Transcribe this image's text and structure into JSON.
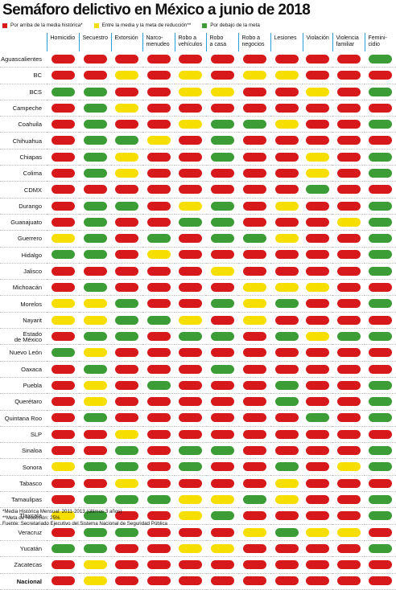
{
  "title": "Semáforo delictivo en México a junio de 2018",
  "legend": [
    {
      "label": "Por arriba de la media histórica*",
      "color": "#d7191b"
    },
    {
      "label": "Entre la media y la meta de reducción**",
      "color": "#f6df00"
    },
    {
      "label": "Por debajo de la meta",
      "color": "#3c9c35"
    }
  ],
  "colors": {
    "r": "#d7191b",
    "y": "#f6df00",
    "g": "#3c9c35"
  },
  "columns": [
    "Homicidio",
    "Secuestro",
    "Extorsión",
    "Narco-\nmenudeo",
    "Robo a\nvehículos",
    "Robo\na casa",
    "Robo a\nnegocios",
    "Lesiones",
    "Violación",
    "Violencia\nfamiliar",
    "Femini-\ncidio"
  ],
  "rows": [
    {
      "state": "Aguascalientes",
      "cells": [
        "r",
        "r",
        "r",
        "r",
        "r",
        "r",
        "r",
        "r",
        "r",
        "r",
        "g"
      ]
    },
    {
      "state": "BC",
      "cells": [
        "r",
        "r",
        "y",
        "r",
        "y",
        "r",
        "y",
        "y",
        "r",
        "r",
        "r"
      ]
    },
    {
      "state": "BCS",
      "cells": [
        "g",
        "g",
        "r",
        "r",
        "y",
        "y",
        "r",
        "r",
        "y",
        "r",
        "g"
      ]
    },
    {
      "state": "Campeche",
      "cells": [
        "r",
        "g",
        "y",
        "r",
        "r",
        "r",
        "r",
        "r",
        "r",
        "r",
        "r"
      ]
    },
    {
      "state": "Coahuila",
      "cells": [
        "r",
        "g",
        "r",
        "r",
        "y",
        "g",
        "g",
        "y",
        "r",
        "r",
        "g"
      ]
    },
    {
      "state": "Chihuahua",
      "cells": [
        "r",
        "g",
        "g",
        "y",
        "r",
        "g",
        "r",
        "r",
        "r",
        "r",
        "r"
      ]
    },
    {
      "state": "Chiapas",
      "cells": [
        "r",
        "g",
        "y",
        "r",
        "r",
        "g",
        "r",
        "r",
        "y",
        "r",
        "g"
      ]
    },
    {
      "state": "Colima",
      "cells": [
        "r",
        "g",
        "y",
        "r",
        "r",
        "r",
        "r",
        "r",
        "y",
        "r",
        "g"
      ]
    },
    {
      "state": "CDMX",
      "cells": [
        "r",
        "r",
        "r",
        "r",
        "r",
        "r",
        "r",
        "r",
        "g",
        "r",
        "r"
      ]
    },
    {
      "state": "Durango",
      "cells": [
        "r",
        "g",
        "g",
        "r",
        "y",
        "g",
        "r",
        "y",
        "r",
        "r",
        "g"
      ]
    },
    {
      "state": "Guanajuato",
      "cells": [
        "r",
        "g",
        "r",
        "r",
        "g",
        "g",
        "r",
        "r",
        "r",
        "y",
        "g"
      ]
    },
    {
      "state": "Guerrero",
      "cells": [
        "y",
        "g",
        "r",
        "g",
        "r",
        "g",
        "g",
        "y",
        "r",
        "r",
        "g"
      ]
    },
    {
      "state": "Hidalgo",
      "cells": [
        "g",
        "g",
        "r",
        "y",
        "r",
        "r",
        "r",
        "r",
        "r",
        "r",
        "g"
      ]
    },
    {
      "state": "Jalisco",
      "cells": [
        "r",
        "r",
        "r",
        "r",
        "r",
        "y",
        "r",
        "r",
        "r",
        "r",
        "g"
      ]
    },
    {
      "state": "Michoacán",
      "cells": [
        "r",
        "g",
        "r",
        "r",
        "r",
        "r",
        "y",
        "y",
        "y",
        "r",
        "r"
      ]
    },
    {
      "state": "Morelos",
      "cells": [
        "y",
        "y",
        "g",
        "r",
        "r",
        "g",
        "y",
        "g",
        "r",
        "r",
        "g"
      ]
    },
    {
      "state": "Nayarit",
      "cells": [
        "y",
        "y",
        "g",
        "g",
        "y",
        "r",
        "y",
        "r",
        "r",
        "r",
        "r"
      ]
    },
    {
      "state": "Estado\nde México",
      "cells": [
        "r",
        "g",
        "g",
        "r",
        "g",
        "g",
        "r",
        "g",
        "y",
        "g",
        "g"
      ]
    },
    {
      "state": "Nuevo León",
      "cells": [
        "g",
        "y",
        "r",
        "r",
        "r",
        "r",
        "r",
        "r",
        "r",
        "r",
        "r"
      ]
    },
    {
      "state": "Oaxaca",
      "cells": [
        "r",
        "g",
        "r",
        "r",
        "r",
        "g",
        "r",
        "r",
        "r",
        "r",
        "r"
      ]
    },
    {
      "state": "Puebla",
      "cells": [
        "r",
        "y",
        "r",
        "g",
        "r",
        "r",
        "r",
        "g",
        "r",
        "r",
        "g"
      ]
    },
    {
      "state": "Querétaro",
      "cells": [
        "r",
        "y",
        "r",
        "r",
        "r",
        "r",
        "r",
        "g",
        "r",
        "r",
        "g"
      ]
    },
    {
      "state": "Quintana Roo",
      "cells": [
        "r",
        "g",
        "r",
        "r",
        "r",
        "r",
        "r",
        "r",
        "g",
        "r",
        "g"
      ]
    },
    {
      "state": "SLP",
      "cells": [
        "r",
        "r",
        "y",
        "r",
        "r",
        "r",
        "r",
        "r",
        "r",
        "r",
        "r"
      ]
    },
    {
      "state": "Sinaloa",
      "cells": [
        "r",
        "r",
        "g",
        "r",
        "g",
        "g",
        "r",
        "r",
        "r",
        "r",
        "g"
      ]
    },
    {
      "state": "Sonora",
      "cells": [
        "y",
        "g",
        "g",
        "r",
        "g",
        "r",
        "r",
        "g",
        "r",
        "y",
        "g"
      ]
    },
    {
      "state": "Tabasco",
      "cells": [
        "r",
        "r",
        "y",
        "r",
        "r",
        "r",
        "r",
        "y",
        "r",
        "r",
        "r"
      ]
    },
    {
      "state": "Tamaulipas",
      "cells": [
        "r",
        "g",
        "g",
        "g",
        "y",
        "y",
        "g",
        "y",
        "r",
        "r",
        "g"
      ]
    },
    {
      "state": "Tlaxcala",
      "cells": [
        "y",
        "g",
        "r",
        "r",
        "y",
        "g",
        "r",
        "r",
        "r",
        "r",
        "g"
      ]
    },
    {
      "state": "Veracruz",
      "cells": [
        "r",
        "g",
        "g",
        "r",
        "r",
        "r",
        "y",
        "g",
        "y",
        "y",
        "r"
      ]
    },
    {
      "state": "Yucatán",
      "cells": [
        "g",
        "g",
        "r",
        "r",
        "y",
        "y",
        "r",
        "r",
        "r",
        "r",
        "g"
      ]
    },
    {
      "state": "Zacatecas",
      "cells": [
        "r",
        "y",
        "r",
        "r",
        "r",
        "r",
        "r",
        "r",
        "r",
        "r",
        "r"
      ]
    },
    {
      "state": "Nacional",
      "bold": true,
      "cells": [
        "r",
        "y",
        "r",
        "r",
        "r",
        "r",
        "r",
        "r",
        "r",
        "r",
        "r"
      ]
    }
  ],
  "footnotes": [
    "*Media Histórica Mensual: 2011-2013 (últimos 3 años)",
    "**Meta de reducción: 25%",
    "Fuente: Secretariado Ejecutivo del Sistema Nacional de Seguridad Pública"
  ]
}
